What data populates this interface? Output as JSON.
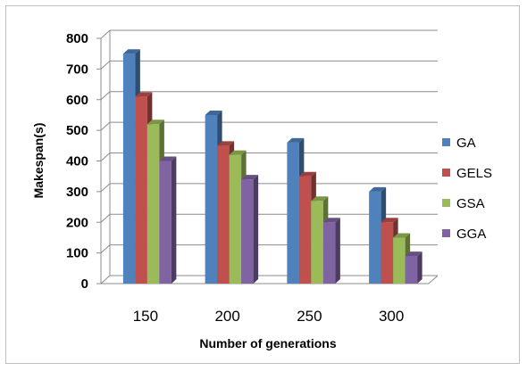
{
  "chart_data": {
    "type": "bar",
    "title": "",
    "xlabel": "Number of generations",
    "ylabel": "Makespan(s)",
    "categories": [
      "150",
      "200",
      "250",
      "300"
    ],
    "ylim": [
      0,
      800
    ],
    "yticks": [
      0,
      100,
      200,
      300,
      400,
      500,
      600,
      700,
      800
    ],
    "grid": true,
    "legend_position": "right",
    "style": "3d-clustered-column",
    "series": [
      {
        "name": "GA",
        "color": "#4f81bd",
        "values": [
          750,
          550,
          460,
          300
        ]
      },
      {
        "name": "GELS",
        "color": "#c0504d",
        "values": [
          610,
          450,
          350,
          200
        ]
      },
      {
        "name": "GSA",
        "color": "#9bbb59",
        "values": [
          520,
          420,
          270,
          150
        ]
      },
      {
        "name": "GGA",
        "color": "#8064a2",
        "values": [
          400,
          340,
          200,
          90
        ]
      }
    ]
  }
}
